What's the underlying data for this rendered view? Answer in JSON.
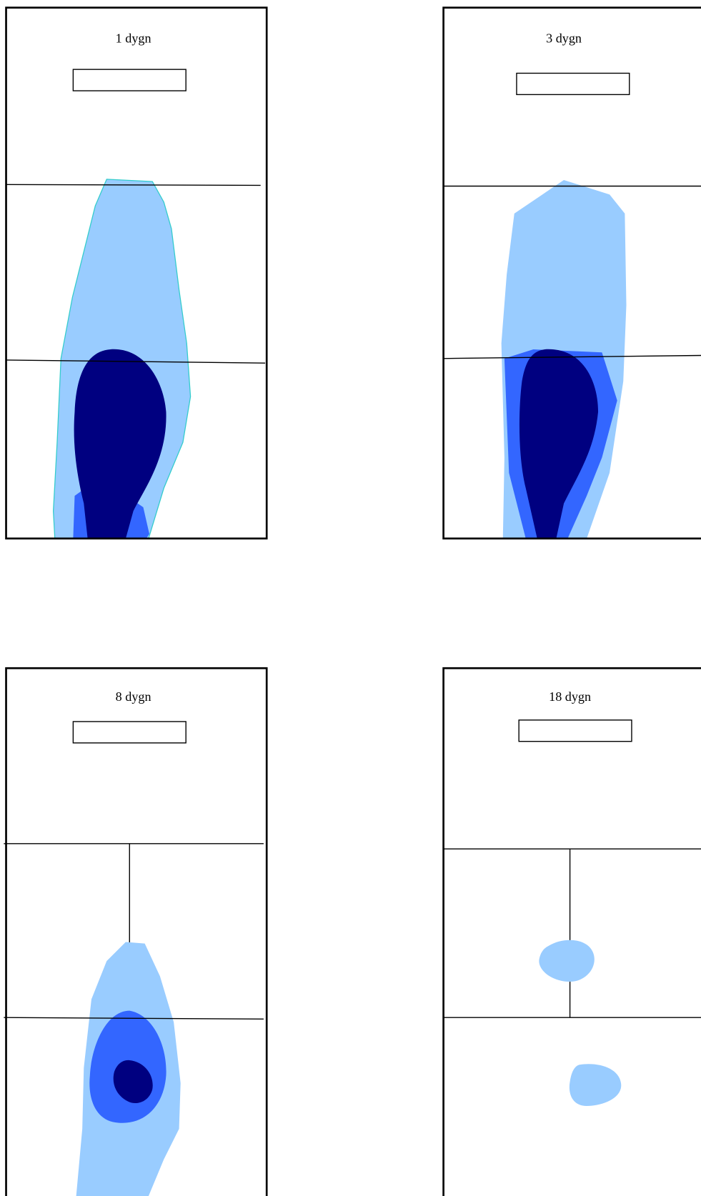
{
  "panels": [
    {
      "title": "1 dygn"
    },
    {
      "title": "3 dygn"
    },
    {
      "title": "8 dygn"
    },
    {
      "title": "18 dygn"
    }
  ]
}
